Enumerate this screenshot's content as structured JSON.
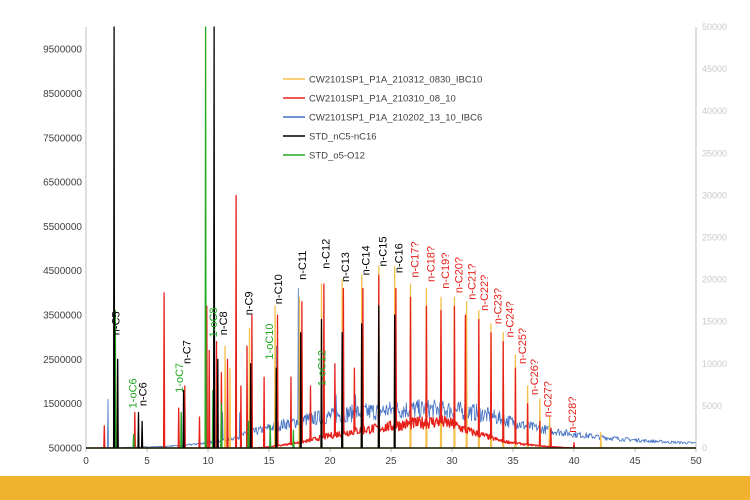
{
  "colors": {
    "band": "#F1B32E",
    "axis": "#bfbfbf"
  },
  "chart_data": {
    "type": "line",
    "title": "",
    "xlabel": "",
    "ylabel": "",
    "xlim": [
      0,
      50
    ],
    "ylim": [
      500000,
      10000000
    ],
    "x_ticks": [
      "0",
      "5",
      "10",
      "15",
      "20",
      "25",
      "30",
      "35",
      "40",
      "45",
      "50"
    ],
    "y_ticks": [
      "500000",
      "1500000",
      "2500000",
      "3500000",
      "4500000",
      "5500000",
      "6500000",
      "7500000",
      "8500000",
      "9500000"
    ],
    "y2_ticks": [
      "0",
      "5000",
      "10000",
      "15000",
      "20000",
      "25000",
      "30000",
      "35000",
      "40000",
      "45000",
      "50000"
    ],
    "y2lim": [
      0,
      50000
    ],
    "legend_position": "top-center",
    "series": [
      {
        "name": "CW2101SP1_P1A_210312_0830_IBC10",
        "color": "#F5C04A",
        "peaks": [
          [
            11.4,
            2800000
          ],
          [
            11.8,
            2300000
          ],
          [
            13.4,
            3200000
          ],
          [
            15.5,
            3700000
          ],
          [
            17.5,
            3900000
          ],
          [
            19.3,
            4200000
          ],
          [
            21.0,
            4300000
          ],
          [
            22.6,
            4400000
          ],
          [
            24.0,
            4600000
          ],
          [
            25.3,
            4600000
          ],
          [
            26.6,
            4200000
          ],
          [
            27.9,
            4100000
          ],
          [
            29.1,
            3900000
          ],
          [
            30.2,
            3900000
          ],
          [
            31.2,
            3800000
          ],
          [
            32.2,
            3600000
          ],
          [
            33.2,
            3300000
          ],
          [
            34.2,
            3100000
          ],
          [
            35.2,
            2600000
          ],
          [
            36.2,
            1900000
          ],
          [
            37.2,
            1600000
          ],
          [
            38.0,
            1200000
          ],
          [
            42.2,
            850000
          ]
        ]
      },
      {
        "name": "CW2101SP1_P1A_210310_08_10",
        "color": "#E8201A",
        "peaks": [
          [
            1.5,
            1000000
          ],
          [
            2.4,
            3300000
          ],
          [
            4.0,
            1300000
          ],
          [
            6.4,
            4000000
          ],
          [
            7.6,
            1400000
          ],
          [
            8.1,
            1900000
          ],
          [
            9.3,
            1200000
          ],
          [
            9.9,
            3700000
          ],
          [
            10.1,
            2700000
          ],
          [
            10.7,
            2900000
          ],
          [
            11.1,
            2200000
          ],
          [
            11.6,
            2500000
          ],
          [
            12.3,
            6200000
          ],
          [
            12.7,
            1900000
          ],
          [
            13.2,
            2800000
          ],
          [
            13.6,
            3500000
          ],
          [
            14.6,
            2100000
          ],
          [
            15.7,
            3500000
          ],
          [
            16.8,
            2100000
          ],
          [
            17.7,
            3800000
          ],
          [
            18.4,
            1900000
          ],
          [
            19.5,
            4200000
          ],
          [
            20.4,
            2400000
          ],
          [
            21.1,
            4100000
          ],
          [
            22.0,
            2300000
          ],
          [
            22.7,
            4100000
          ],
          [
            24.0,
            4400000
          ],
          [
            25.4,
            4100000
          ],
          [
            26.6,
            3900000
          ],
          [
            27.9,
            3700000
          ],
          [
            29.1,
            3600000
          ],
          [
            30.2,
            3700000
          ],
          [
            31.1,
            3500000
          ],
          [
            32.2,
            3400000
          ],
          [
            33.2,
            3100000
          ],
          [
            34.2,
            2900000
          ],
          [
            35.2,
            2300000
          ],
          [
            36.2,
            1500000
          ],
          [
            37.2,
            1100000
          ],
          [
            38.1,
            950000
          ],
          [
            40.0,
            620000
          ]
        ],
        "baseline": [
          [
            14,
            0
          ],
          [
            16,
            60000
          ],
          [
            18,
            150000
          ],
          [
            20,
            280000
          ],
          [
            22,
            380000
          ],
          [
            24,
            450000
          ],
          [
            26,
            530000
          ],
          [
            28,
            580000
          ],
          [
            29,
            600000
          ],
          [
            30,
            540000
          ],
          [
            31,
            420000
          ],
          [
            32,
            330000
          ],
          [
            33,
            250000
          ],
          [
            34,
            160000
          ],
          [
            36,
            80000
          ],
          [
            38,
            30000
          ],
          [
            40,
            0
          ]
        ]
      },
      {
        "name": "CW2101SP1_P1A_210202_13_10_IBC6",
        "color": "#4472C4",
        "peaks": [
          [
            1.8,
            1600000
          ],
          [
            2.6,
            2500000
          ],
          [
            10.5,
            2600000
          ],
          [
            11.2,
            1300000
          ],
          [
            12.6,
            1300000
          ],
          [
            13.6,
            1900000
          ],
          [
            15.6,
            2800000
          ],
          [
            17.4,
            4100000
          ],
          [
            19.3,
            1600000
          ],
          [
            20.5,
            1700000
          ],
          [
            22.1,
            1700000
          ]
        ],
        "baseline": [
          [
            0,
            0
          ],
          [
            3,
            10000
          ],
          [
            6,
            30000
          ],
          [
            8,
            60000
          ],
          [
            10,
            120000
          ],
          [
            12,
            220000
          ],
          [
            14,
            380000
          ],
          [
            16,
            520000
          ],
          [
            18,
            640000
          ],
          [
            20,
            720000
          ],
          [
            22,
            790000
          ],
          [
            24,
            840000
          ],
          [
            26,
            870000
          ],
          [
            28,
            880000
          ],
          [
            30,
            860000
          ],
          [
            32,
            800000
          ],
          [
            34,
            660000
          ],
          [
            36,
            500000
          ],
          [
            38,
            400000
          ],
          [
            40,
            310000
          ],
          [
            42,
            250000
          ],
          [
            44,
            200000
          ],
          [
            46,
            160000
          ],
          [
            48,
            130000
          ],
          [
            50,
            110000
          ]
        ]
      },
      {
        "name": "STD_nC5-nC16",
        "color": "#000000",
        "peaks": [
          [
            2.3,
            10000000
          ],
          [
            2.6,
            2500000
          ],
          [
            4.3,
            1300000
          ],
          [
            4.6,
            1100000
          ],
          [
            8.0,
            1800000
          ],
          [
            10.5,
            10000000
          ],
          [
            10.8,
            2500000
          ],
          [
            13.5,
            2400000
          ],
          [
            15.6,
            2300000
          ],
          [
            17.6,
            3100000
          ],
          [
            19.3,
            3400000
          ],
          [
            21.0,
            3100000
          ],
          [
            22.6,
            3300000
          ],
          [
            24.0,
            3700000
          ],
          [
            25.3,
            3500000
          ]
        ]
      },
      {
        "name": "STD_o5-O12",
        "color": "#22A822",
        "peaks": [
          [
            2.4,
            3600000
          ],
          [
            3.9,
            800000
          ],
          [
            7.8,
            1300000
          ],
          [
            9.8,
            10000000
          ],
          [
            10.4,
            1800000
          ],
          [
            11.1,
            1500000
          ],
          [
            13.3,
            1100000
          ],
          [
            15.1,
            1000000
          ],
          [
            17.0,
            900000
          ]
        ]
      }
    ],
    "annotations": [
      {
        "text": "n-C5",
        "x": 2.5,
        "y": 3000000,
        "color": "#000000"
      },
      {
        "text": "1-oC6",
        "x": 3.9,
        "y": 1350000,
        "color": "#22A822"
      },
      {
        "text": "n-C6",
        "x": 4.7,
        "y": 1400000,
        "color": "#000000"
      },
      {
        "text": "1-oC7",
        "x": 7.7,
        "y": 1700000,
        "color": "#22A822"
      },
      {
        "text": "n-C7",
        "x": 8.3,
        "y": 2350000,
        "color": "#000000"
      },
      {
        "text": "1-oC8",
        "x": 10.5,
        "y": 2950000,
        "color": "#22A822"
      },
      {
        "text": "n-C8",
        "x": 11.3,
        "y": 3000000,
        "color": "#000000"
      },
      {
        "text": "n-C9",
        "x": 13.4,
        "y": 3450000,
        "color": "#000000"
      },
      {
        "text": "1-oC10",
        "x": 15.1,
        "y": 2450000,
        "color": "#22A822"
      },
      {
        "text": "n-C10",
        "x": 15.8,
        "y": 3700000,
        "color": "#000000"
      },
      {
        "text": "n-C11",
        "x": 17.8,
        "y": 4250000,
        "color": "#000000"
      },
      {
        "text": "1-oC12",
        "x": 19.4,
        "y": 1850000,
        "color": "#22A822"
      },
      {
        "text": "n-C12",
        "x": 19.7,
        "y": 4500000,
        "color": "#000000"
      },
      {
        "text": "n-C13",
        "x": 21.3,
        "y": 4200000,
        "color": "#000000"
      },
      {
        "text": "n-C14",
        "x": 23.0,
        "y": 4350000,
        "color": "#000000"
      },
      {
        "text": "n-C15",
        "x": 24.4,
        "y": 4550000,
        "color": "#000000"
      },
      {
        "text": "n-C16",
        "x": 25.7,
        "y": 4400000,
        "color": "#000000"
      },
      {
        "text": "n-C17?",
        "x": 27.0,
        "y": 4300000,
        "color": "#E8201A"
      },
      {
        "text": "n-C18?",
        "x": 28.3,
        "y": 4200000,
        "color": "#E8201A"
      },
      {
        "text": "n-C19?",
        "x": 29.5,
        "y": 4050000,
        "color": "#E8201A"
      },
      {
        "text": "n-C20?",
        "x": 30.6,
        "y": 3950000,
        "color": "#E8201A"
      },
      {
        "text": "n-C21?",
        "x": 31.7,
        "y": 3800000,
        "color": "#E8201A"
      },
      {
        "text": "n-C22?",
        "x": 32.7,
        "y": 3550000,
        "color": "#E8201A"
      },
      {
        "text": "n-C23?",
        "x": 33.8,
        "y": 3250000,
        "color": "#E8201A"
      },
      {
        "text": "n-C24?",
        "x": 34.8,
        "y": 2950000,
        "color": "#E8201A"
      },
      {
        "text": "n-C25?",
        "x": 35.8,
        "y": 2350000,
        "color": "#E8201A"
      },
      {
        "text": "n-C26?",
        "x": 36.8,
        "y": 1650000,
        "color": "#E8201A"
      },
      {
        "text": "n-C27?",
        "x": 37.9,
        "y": 1150000,
        "color": "#E8201A"
      },
      {
        "text": "n-C28?",
        "x": 39.9,
        "y": 800000,
        "color": "#E8201A"
      }
    ]
  }
}
